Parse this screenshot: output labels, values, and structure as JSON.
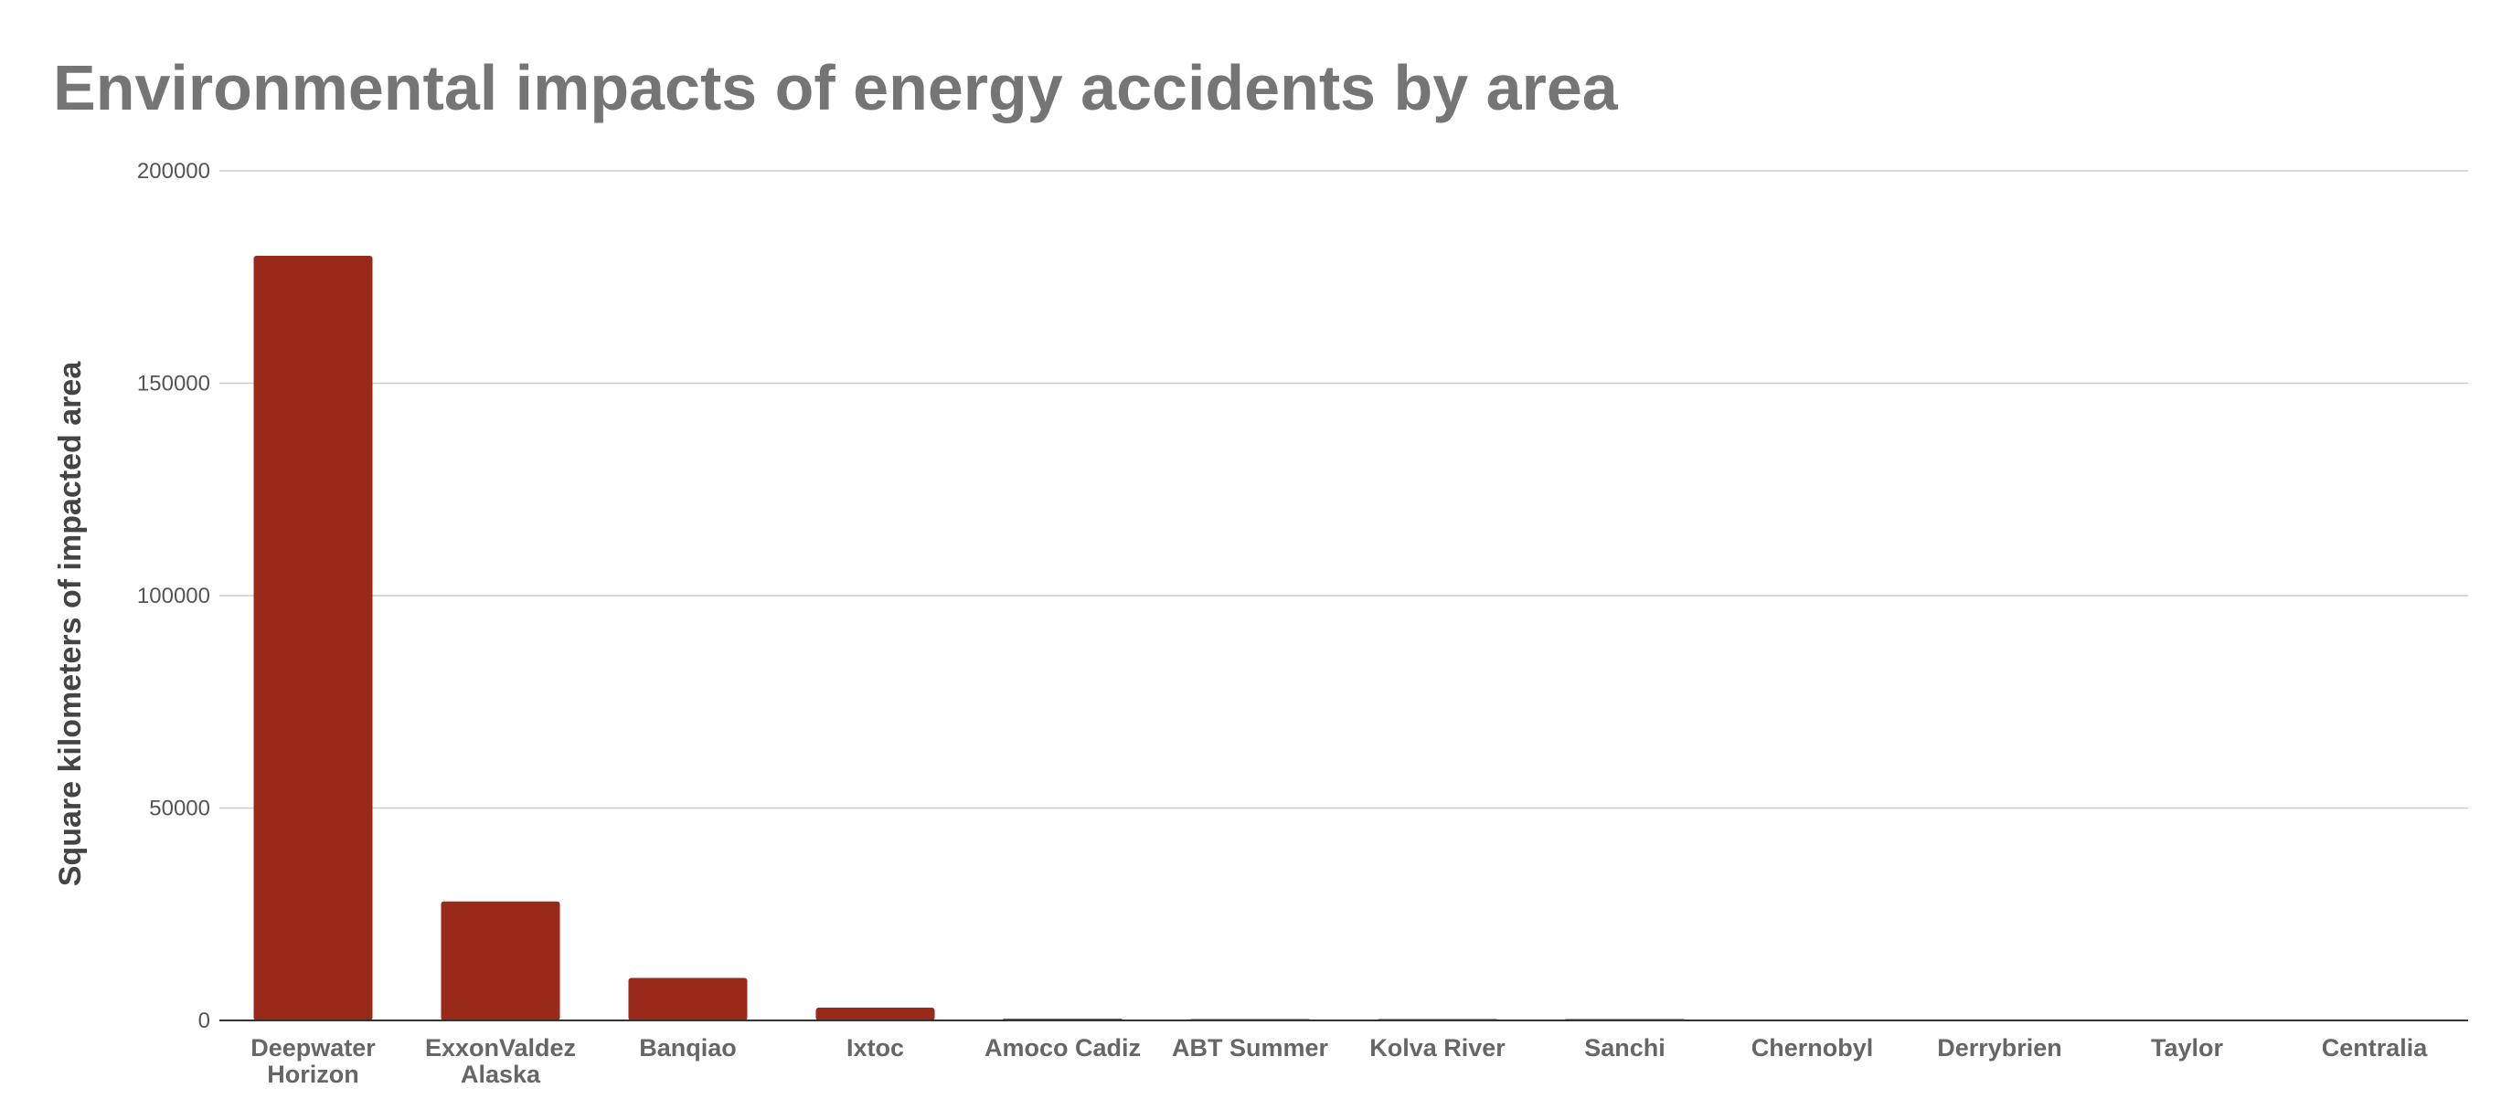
{
  "chart_data": {
    "type": "bar",
    "title": "Environmental impacts of energy accidents by area",
    "ylabel": "Square kilometers of impacted area",
    "xlabel": "",
    "ylim": [
      0,
      200000
    ],
    "yticks": [
      "0",
      "50000",
      "100000",
      "150000",
      "200000"
    ],
    "grid": true,
    "legend": "none",
    "bar_color": "#992a1a",
    "categories": [
      "Deepwater Horizon",
      "ExxonValdez Alaska",
      "Banqiao",
      "Ixtoc",
      "Amoco Cadiz",
      "ABT Summer",
      "Kolva River",
      "Sanchi",
      "Chernobyl",
      "Derrybrien",
      "Taylor",
      "Centralia"
    ],
    "category_lines": [
      [
        "Deepwater",
        "Horizon"
      ],
      [
        "ExxonValdez",
        "Alaska"
      ],
      [
        "Banqiao"
      ],
      [
        "Ixtoc"
      ],
      [
        "Amoco Cadiz"
      ],
      [
        "ABT Summer"
      ],
      [
        "Kolva River"
      ],
      [
        "Sanchi"
      ],
      [
        "Chernobyl"
      ],
      [
        "Derrybrien"
      ],
      [
        "Taylor"
      ],
      [
        "Centralia"
      ]
    ],
    "values": [
      180000,
      28000,
      10000,
      3000,
      400,
      300,
      250,
      200,
      0,
      0,
      0,
      0
    ]
  }
}
